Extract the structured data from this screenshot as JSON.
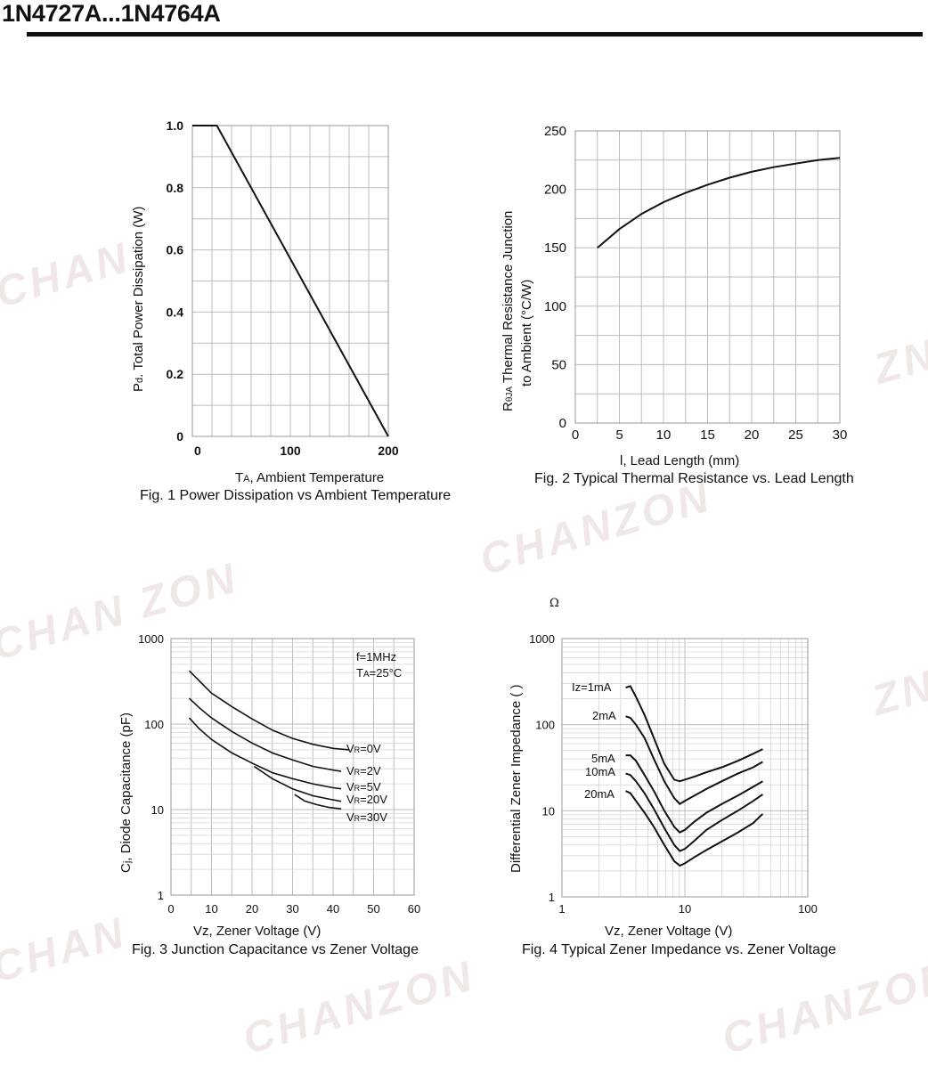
{
  "header": {
    "title": "1N4727A...1N4764A"
  },
  "watermark": {
    "text": "CHANZON",
    "color": "#f0e7e7"
  },
  "stray_glyph": "Ω",
  "chart_data": [
    {
      "id": "fig1",
      "type": "line",
      "caption": "Fig. 1 Power Dissipation vs Ambient Temperature",
      "xlabel_sub": "A",
      "xlabel_prefix": "T",
      "xlabel_rest": ", Ambient Temperature",
      "ylabel_prefix": "P",
      "ylabel_sub": "d",
      "ylabel_rest": ". Total Power Dissipation (W)",
      "xlim": [
        0,
        200
      ],
      "ylim": [
        0,
        1.0
      ],
      "x_ticks": [
        "0",
        "100",
        "200"
      ],
      "y_ticks": [
        "0",
        "0.2",
        "0.4",
        "0.6",
        "0.8",
        "1.0"
      ],
      "grid": true,
      "series": [
        {
          "x": [
            0,
            25,
            200
          ],
          "y": [
            1.0,
            1.0,
            0.0
          ]
        }
      ]
    },
    {
      "id": "fig2",
      "type": "line",
      "caption": "Fig. 2 Typical Thermal Resistance vs. Lead Length",
      "xlabel": "l, Lead Length (mm)",
      "ylabel_line1_prefix": "R",
      "ylabel_line1_sub": "θJA",
      "ylabel_line1_rest": "  Thermal Resistance Junction",
      "ylabel_line2": "to Ambient (°C/W)",
      "xlim": [
        0,
        30
      ],
      "ylim": [
        0,
        250
      ],
      "x_ticks": [
        "0",
        "5",
        "10",
        "15",
        "20",
        "25",
        "30"
      ],
      "y_ticks": [
        "0",
        "50",
        "100",
        "150",
        "200",
        "250"
      ],
      "grid": true,
      "series": [
        {
          "x": [
            2.5,
            5,
            7.5,
            10,
            12.5,
            15,
            17.5,
            20,
            22.5,
            25,
            27.5,
            30
          ],
          "y": [
            150,
            166,
            179,
            189,
            197,
            204,
            210,
            215,
            219,
            222,
            225,
            227
          ]
        }
      ]
    },
    {
      "id": "fig3",
      "type": "line",
      "caption": "Fig. 3 Junction Capacitance vs Zener Voltage",
      "xlabel": "Vz, Zener Voltage (V)",
      "ylabel_prefix": "C",
      "ylabel_sub": "j",
      "ylabel_rest": ", Diode Capacitance (pF)",
      "xlim": [
        0,
        60
      ],
      "ylim": [
        1,
        1000
      ],
      "yscale": "log",
      "x_ticks": [
        "0",
        "10",
        "20",
        "30",
        "40",
        "50",
        "60"
      ],
      "y_ticks": [
        "1",
        "10",
        "100",
        "1000"
      ],
      "annotation_line1": "f=1MHz",
      "annotation_line2_prefix": "T",
      "annotation_line2_sub": "A",
      "annotation_line2_rest": "=25°C",
      "grid": true,
      "series": [
        {
          "label_prefix": "V",
          "label_sub": "R",
          "label_rest": "=0V",
          "x": [
            4.5,
            7,
            10,
            15,
            20,
            25,
            30,
            35,
            40,
            44
          ],
          "y": [
            420,
            320,
            230,
            160,
            115,
            85,
            68,
            58,
            52,
            50
          ]
        },
        {
          "label_prefix": "V",
          "label_sub": "R",
          "label_rest": "=2V",
          "x": [
            4.5,
            7,
            10,
            15,
            20,
            25,
            30,
            35,
            40,
            42
          ],
          "y": [
            200,
            155,
            118,
            82,
            60,
            46,
            38,
            32,
            29,
            28
          ]
        },
        {
          "label_prefix": "V",
          "label_sub": "R",
          "label_rest": "=5V",
          "x": [
            4.5,
            7,
            10,
            15,
            20,
            25,
            30,
            35,
            40,
            42
          ],
          "y": [
            118,
            88,
            66,
            46,
            35,
            27,
            23,
            20,
            18,
            17.5
          ]
        },
        {
          "label_prefix": "V",
          "label_sub": "R",
          "label_rest": "=20V",
          "x": [
            20.5,
            25,
            30,
            35,
            40,
            42
          ],
          "y": [
            32,
            23,
            17.5,
            14.5,
            13,
            12.5
          ]
        },
        {
          "label_prefix": "V",
          "label_sub": "R",
          "label_rest": "=30V",
          "x": [
            30.5,
            33,
            36,
            39,
            42
          ],
          "y": [
            15,
            12.6,
            11.4,
            10.6,
            10.2
          ]
        }
      ]
    },
    {
      "id": "fig4",
      "type": "line",
      "caption": "Fig. 4 Typical Zener Impedance vs. Zener Voltage",
      "xlabel": "Vz, Zener Voltage (V)",
      "ylabel": "Differential Zener Impedance (   )",
      "xlim": [
        1,
        100
      ],
      "ylim": [
        1,
        1000
      ],
      "xscale": "log",
      "yscale": "log",
      "x_ticks": [
        "1",
        "10",
        "100"
      ],
      "y_ticks": [
        "1",
        "10",
        "100",
        "1000"
      ],
      "grid": true,
      "series": [
        {
          "name": "Iz=1mA",
          "x": [
            3.3,
            3.6,
            4.0,
            4.7,
            5.6,
            6.8,
            8.2,
            9.1,
            10,
            12,
            15,
            20,
            27,
            36,
            43
          ],
          "y": [
            270,
            280,
            210,
            130,
            70,
            35,
            23,
            22,
            23,
            25,
            28,
            32,
            38,
            46,
            52
          ]
        },
        {
          "name": "2mA",
          "x": [
            3.3,
            3.6,
            4.0,
            4.7,
            5.6,
            6.8,
            8.2,
            9.1,
            10,
            12,
            15,
            20,
            27,
            36,
            43
          ],
          "y": [
            125,
            120,
            100,
            70,
            40,
            22,
            14,
            12,
            13,
            15,
            18,
            22,
            27,
            32,
            37
          ]
        },
        {
          "name": "5mA",
          "x": [
            3.3,
            3.6,
            4.0,
            4.7,
            5.6,
            6.8,
            8.2,
            9.1,
            10,
            12,
            15,
            20,
            27,
            36,
            43
          ],
          "y": [
            44,
            44,
            38,
            26,
            17,
            10,
            6.5,
            5.6,
            6,
            7.5,
            9.5,
            12,
            15,
            19,
            22
          ]
        },
        {
          "name": "10mA",
          "x": [
            3.3,
            3.6,
            4.0,
            4.7,
            5.6,
            6.8,
            8.2,
            9.1,
            10,
            12,
            15,
            20,
            27,
            36,
            43
          ],
          "y": [
            27,
            26,
            22,
            16,
            10.5,
            6.3,
            4.0,
            3.4,
            3.6,
            4.5,
            6.0,
            7.8,
            10,
            13,
            15.5
          ]
        },
        {
          "name": "20mA",
          "x": [
            3.3,
            3.6,
            4.0,
            4.7,
            5.6,
            6.8,
            8.2,
            9.1,
            10,
            12,
            15,
            20,
            27,
            36,
            43
          ],
          "y": [
            17,
            16,
            13,
            9.5,
            6.5,
            4.0,
            2.6,
            2.3,
            2.45,
            2.9,
            3.5,
            4.4,
            5.6,
            7.2,
            9.2
          ]
        }
      ]
    }
  ]
}
